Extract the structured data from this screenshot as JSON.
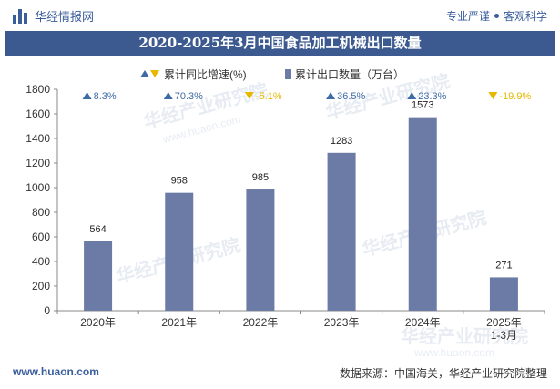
{
  "header": {
    "logo_text": "华经情报网",
    "right_text_1": "专业严谨",
    "right_text_2": "客观科学"
  },
  "title": "2020-2025年3月中国食品加工机械出口数量",
  "watermark": {
    "text": "华经产业研究院",
    "url": "www.huaon.com"
  },
  "footer": {
    "left": "www.huaon.com",
    "right": "数据来源：中国海关，华经产业研究院整理"
  },
  "colors": {
    "bar": "#6b7ba5",
    "up": "#3e6aa6",
    "down": "#e6b800",
    "title_bg": "#3c5a8f"
  },
  "chart_data": {
    "type": "bar",
    "categories": [
      "2020年",
      "2021年",
      "2022年",
      "2023年",
      "2024年",
      "2025年\n1-3月"
    ],
    "series": [
      {
        "name": "累计出口数量（万台）",
        "values": [
          564,
          958,
          985,
          1283,
          1573,
          271
        ]
      },
      {
        "name": "累计同比增速(%)",
        "values": [
          8.3,
          70.3,
          -5.1,
          36.5,
          23.3,
          -19.9
        ]
      }
    ],
    "growth_labels": [
      "8.3%",
      "70.3%",
      "-5.1%",
      "36.5%",
      "23.3%",
      "-19.9%"
    ],
    "ylim": [
      0,
      1800
    ],
    "yticks": [
      0,
      200,
      400,
      600,
      800,
      1000,
      1200,
      1400,
      1600,
      1800
    ],
    "legend_position": "top-center",
    "grid": false
  }
}
